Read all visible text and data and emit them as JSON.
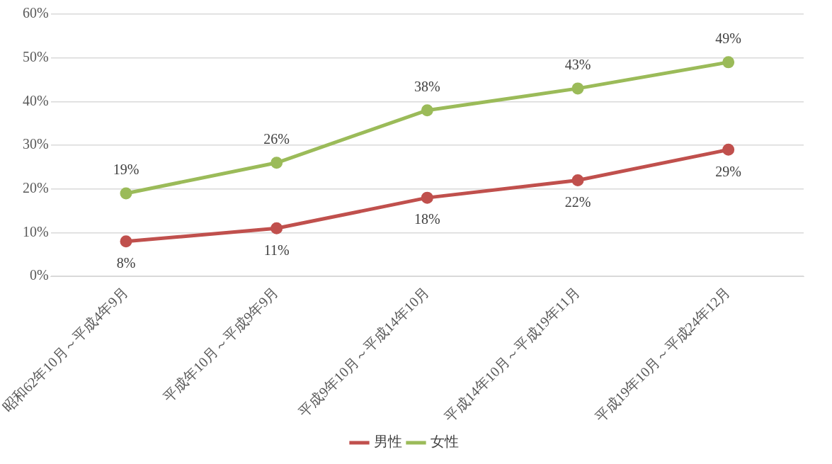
{
  "chart_data": {
    "type": "line",
    "categories": [
      "昭和62年10月～平成4年9月",
      "平成年10月～平成9年9月",
      "平成9年10月～平成14年10月",
      "平成14年10月～平成19年11月",
      "平成19年10月～平成24年12月"
    ],
    "series": [
      {
        "name": "男性",
        "color": "#c0504d",
        "values": [
          8,
          11,
          18,
          22,
          29
        ],
        "value_labels": [
          "8%",
          "11%",
          "18%",
          "22%",
          "29%"
        ]
      },
      {
        "name": "女性",
        "color": "#9bbb59",
        "values": [
          19,
          26,
          38,
          43,
          49
        ],
        "value_labels": [
          "19%",
          "26%",
          "38%",
          "43%",
          "49%"
        ]
      }
    ],
    "ylim": [
      0,
      60
    ],
    "yticks": [
      {
        "value": 0,
        "label": "0%"
      },
      {
        "value": 10,
        "label": "10%"
      },
      {
        "value": 20,
        "label": "20%"
      },
      {
        "value": 30,
        "label": "30%"
      },
      {
        "value": 40,
        "label": "40%"
      },
      {
        "value": 50,
        "label": "50%"
      },
      {
        "value": 60,
        "label": "60%"
      }
    ],
    "grid": "y",
    "legend": "bottom",
    "marker": "circle",
    "line_style": "solid"
  }
}
